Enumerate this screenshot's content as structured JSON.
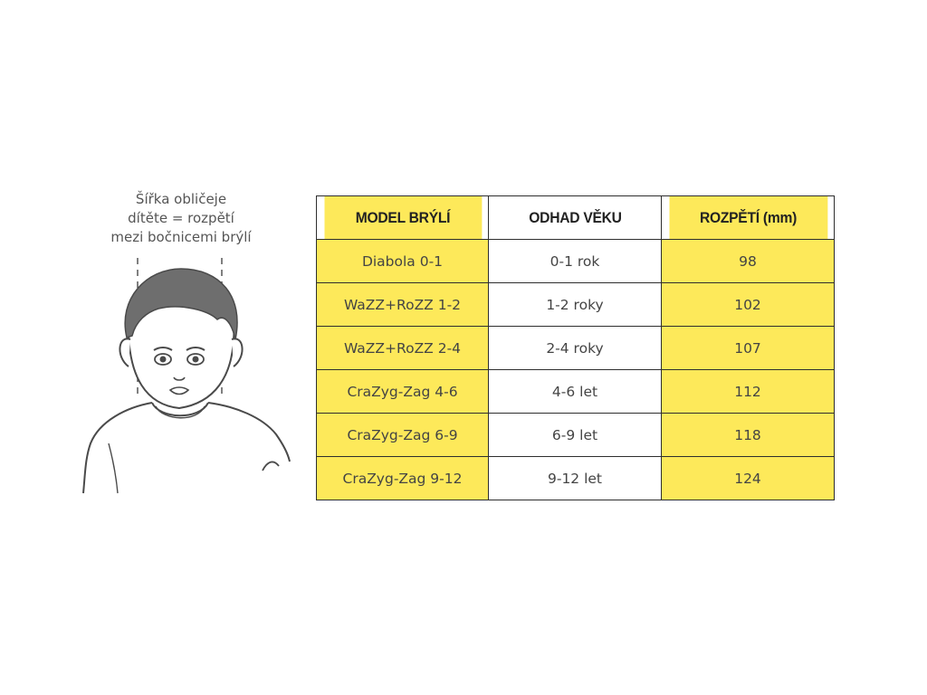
{
  "caption": {
    "lines": [
      "Šířka obličeje",
      "dítěte = rozpětí",
      "mezi bočnicemi brýlí"
    ]
  },
  "colors": {
    "highlight": "#fde95a",
    "border": "#2e2e2e",
    "hair": "#6e6e6e",
    "line": "#4a4a4a"
  },
  "table": {
    "headers": [
      "MODEL BRÝLÍ",
      "ODHAD VĚKU",
      "ROZPĚTÍ (mm)"
    ],
    "rows": [
      [
        "Diabola 0-1",
        "0-1 rok",
        "98"
      ],
      [
        "WaZZ+RoZZ 1-2",
        "1-2 roky",
        "102"
      ],
      [
        "WaZZ+RoZZ 2-4",
        "2-4 roky",
        "107"
      ],
      [
        "CraZyg-Zag 4-6",
        "4-6 let",
        "112"
      ],
      [
        "CraZyg-Zag 6-9",
        "6-9 let",
        "118"
      ],
      [
        "CraZyg-Zag 9-12",
        "9-12 let",
        "124"
      ]
    ]
  }
}
